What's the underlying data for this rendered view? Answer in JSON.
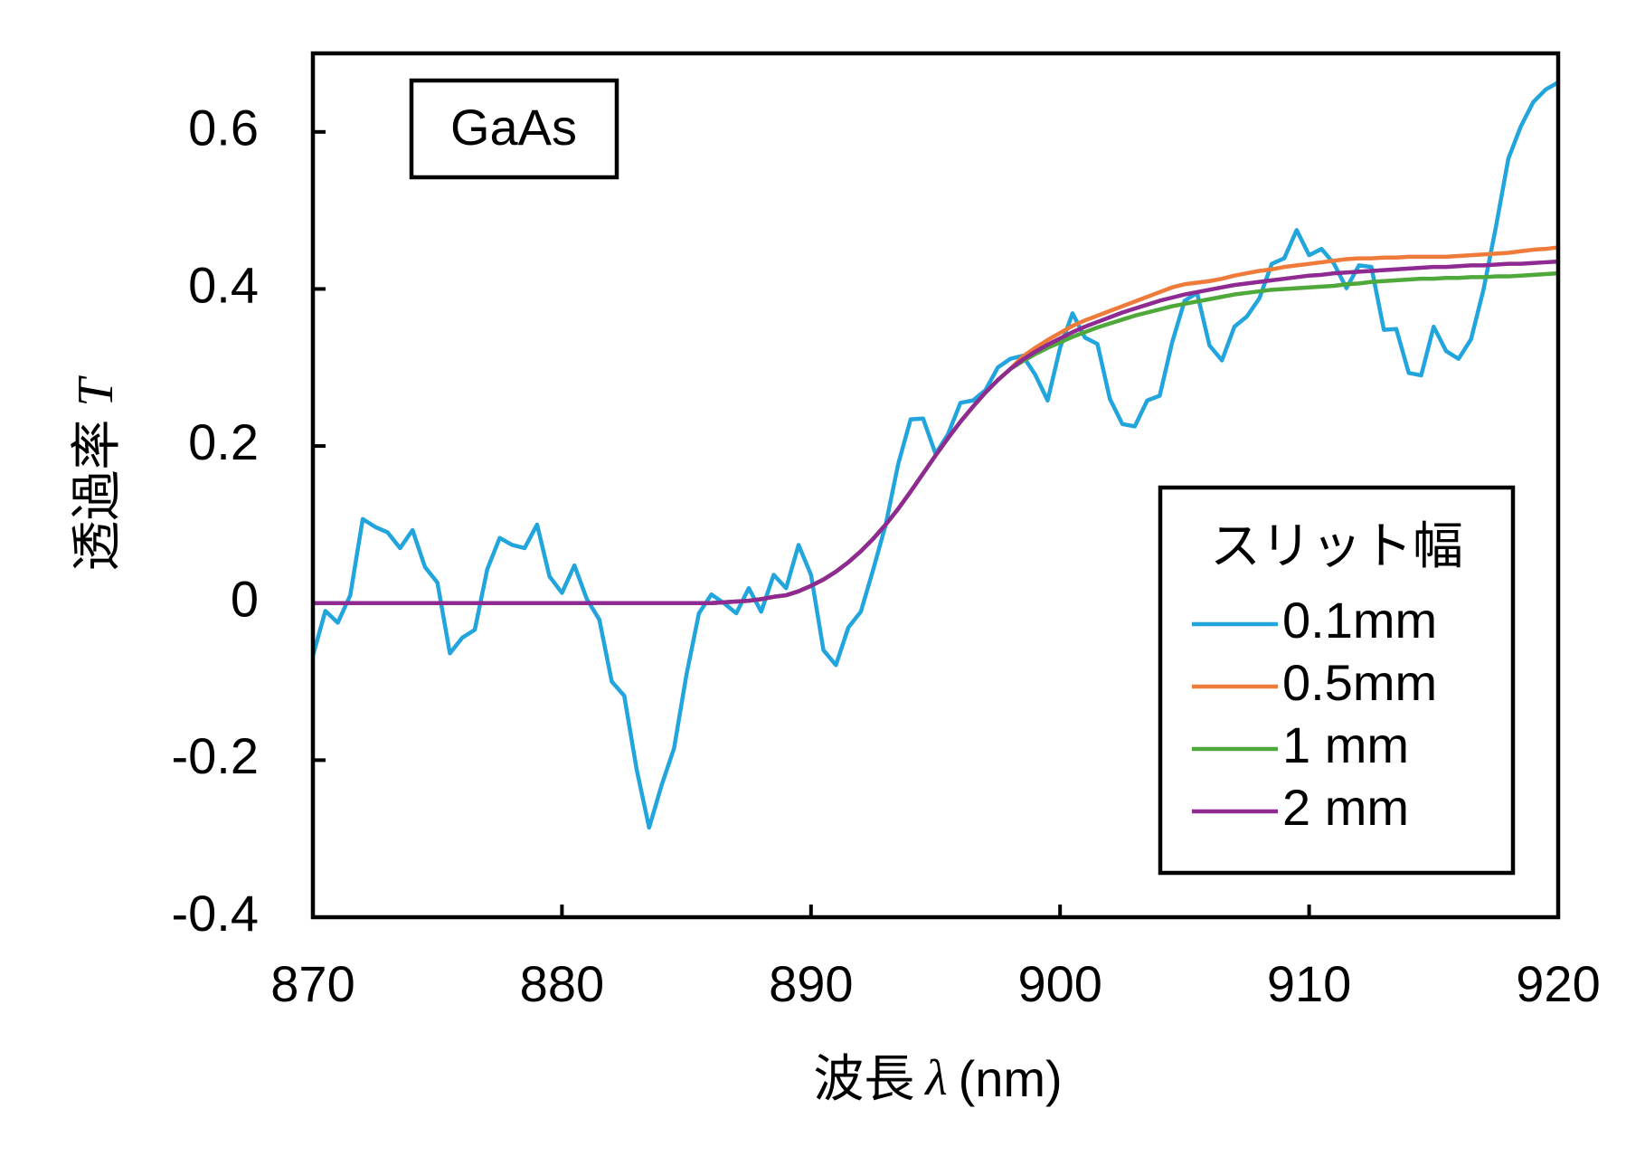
{
  "chart_data": {
    "type": "line",
    "annotation": "GaAs",
    "x_label": "波長",
    "x_label_symbol": "λ",
    "x_label_unit": "(nm)",
    "y_label": "透過率",
    "y_label_symbol": "T",
    "legend_title": "スリット幅",
    "legend": "lower right",
    "xlim": [
      870,
      920
    ],
    "xticks": [
      870,
      880,
      890,
      900,
      910,
      920
    ],
    "ylim": [
      -0.4,
      0.7
    ],
    "yticks": [
      -0.4,
      -0.2,
      0,
      0.2,
      0.4,
      0.6
    ],
    "x": [
      870,
      870.5,
      871,
      871.5,
      872,
      872.5,
      873,
      873.5,
      874,
      874.5,
      875,
      875.5,
      876,
      876.5,
      877,
      877.5,
      878,
      878.5,
      879,
      879.5,
      880,
      880.5,
      881,
      881.5,
      882,
      882.5,
      883,
      883.5,
      884,
      884.5,
      885,
      885.5,
      886,
      886.5,
      887,
      887.5,
      888,
      888.5,
      889,
      889.5,
      890,
      890.5,
      891,
      891.5,
      892,
      892.5,
      893,
      893.5,
      894,
      894.5,
      895,
      895.5,
      896,
      896.5,
      897,
      897.5,
      898,
      898.5,
      899,
      899.5,
      900,
      900.5,
      901,
      901.5,
      902,
      902.5,
      903,
      903.5,
      904,
      904.5,
      905,
      905.5,
      906,
      906.5,
      907,
      907.5,
      908,
      908.5,
      909,
      909.5,
      910,
      910.5,
      911,
      911.5,
      912,
      912.5,
      913,
      913.5,
      914,
      914.5,
      915,
      915.5,
      916,
      916.5,
      917,
      917.5,
      918,
      918.5,
      919,
      919.5,
      920
    ],
    "series": [
      {
        "name": "0.1mm",
        "color": "#22a5dc",
        "values": [
          -0.067,
          -0.01,
          -0.025,
          0.01,
          0.107,
          0.097,
          0.09,
          0.07,
          0.093,
          0.046,
          0.026,
          -0.064,
          -0.044,
          -0.034,
          0.043,
          0.083,
          0.074,
          0.07,
          0.1,
          0.034,
          0.013,
          0.048,
          0.005,
          -0.021,
          -0.1,
          -0.118,
          -0.212,
          -0.286,
          -0.232,
          -0.185,
          -0.091,
          -0.013,
          0.011,
          0,
          -0.013,
          0.019,
          -0.011,
          0.036,
          0.019,
          0.074,
          0.036,
          -0.06,
          -0.079,
          -0.031,
          -0.011,
          0.043,
          0.1,
          0.177,
          0.234,
          0.235,
          0.19,
          0.215,
          0.255,
          0.258,
          0.271,
          0.3,
          0.311,
          0.315,
          0.291,
          0.258,
          0.325,
          0.369,
          0.338,
          0.33,
          0.26,
          0.228,
          0.225,
          0.258,
          0.264,
          0.332,
          0.385,
          0.395,
          0.328,
          0.309,
          0.352,
          0.365,
          0.388,
          0.432,
          0.439,
          0.475,
          0.443,
          0.451,
          0.432,
          0.401,
          0.43,
          0.428,
          0.348,
          0.349,
          0.293,
          0.29,
          0.352,
          0.321,
          0.311,
          0.336,
          0.399,
          0.479,
          0.566,
          0.607,
          0.638,
          0.654,
          0.663
        ]
      },
      {
        "name": "0.5mm",
        "color": "#ef7b3a",
        "values": [
          0,
          0,
          0,
          0,
          0,
          0,
          0,
          0,
          0,
          0,
          0,
          0,
          0,
          0,
          0,
          0,
          0,
          0,
          0,
          0,
          0,
          0,
          0,
          0,
          0,
          0,
          0,
          0,
          0,
          0,
          0,
          0,
          0,
          0.001,
          0.002,
          0.003,
          0.005,
          0.008,
          0.01,
          0.015,
          0.022,
          0.03,
          0.04,
          0.052,
          0.066,
          0.082,
          0.1,
          0.12,
          0.142,
          0.165,
          0.188,
          0.21,
          0.231,
          0.25,
          0.268,
          0.284,
          0.298,
          0.314,
          0.325,
          0.335,
          0.344,
          0.353,
          0.36,
          0.366,
          0.372,
          0.378,
          0.384,
          0.39,
          0.396,
          0.402,
          0.406,
          0.408,
          0.41,
          0.413,
          0.417,
          0.42,
          0.423,
          0.425,
          0.428,
          0.43,
          0.432,
          0.434,
          0.436,
          0.438,
          0.439,
          0.439,
          0.44,
          0.44,
          0.441,
          0.441,
          0.441,
          0.441,
          0.442,
          0.443,
          0.444,
          0.445,
          0.446,
          0.448,
          0.45,
          0.451,
          0.453
        ]
      },
      {
        "name": "1 mm",
        "color": "#4fa83a",
        "values": [
          0,
          0,
          0,
          0,
          0,
          0,
          0,
          0,
          0,
          0,
          0,
          0,
          0,
          0,
          0,
          0,
          0,
          0,
          0,
          0,
          0,
          0,
          0,
          0,
          0,
          0,
          0,
          0,
          0,
          0,
          0,
          0,
          0,
          0.001,
          0.002,
          0.003,
          0.005,
          0.008,
          0.01,
          0.015,
          0.022,
          0.03,
          0.04,
          0.052,
          0.066,
          0.082,
          0.1,
          0.12,
          0.142,
          0.165,
          0.188,
          0.21,
          0.231,
          0.25,
          0.268,
          0.284,
          0.298,
          0.308,
          0.317,
          0.325,
          0.332,
          0.339,
          0.345,
          0.351,
          0.356,
          0.361,
          0.366,
          0.37,
          0.374,
          0.378,
          0.381,
          0.384,
          0.387,
          0.39,
          0.393,
          0.395,
          0.397,
          0.399,
          0.4,
          0.401,
          0.402,
          0.403,
          0.404,
          0.406,
          0.407,
          0.409,
          0.41,
          0.411,
          0.412,
          0.413,
          0.413,
          0.414,
          0.414,
          0.415,
          0.415,
          0.416,
          0.416,
          0.417,
          0.418,
          0.419,
          0.42
        ]
      },
      {
        "name": "2 mm",
        "color": "#8e2a91",
        "values": [
          0,
          0,
          0,
          0,
          0,
          0,
          0,
          0,
          0,
          0,
          0,
          0,
          0,
          0,
          0,
          0,
          0,
          0,
          0,
          0,
          0,
          0,
          0,
          0,
          0,
          0,
          0,
          0,
          0,
          0,
          0,
          0,
          0,
          0.001,
          0.002,
          0.003,
          0.005,
          0.008,
          0.01,
          0.015,
          0.022,
          0.03,
          0.04,
          0.052,
          0.066,
          0.082,
          0.1,
          0.12,
          0.142,
          0.165,
          0.188,
          0.21,
          0.231,
          0.25,
          0.268,
          0.284,
          0.298,
          0.31,
          0.32,
          0.329,
          0.337,
          0.345,
          0.352,
          0.358,
          0.364,
          0.37,
          0.375,
          0.38,
          0.385,
          0.389,
          0.393,
          0.396,
          0.399,
          0.402,
          0.405,
          0.407,
          0.409,
          0.411,
          0.413,
          0.415,
          0.417,
          0.418,
          0.42,
          0.421,
          0.422,
          0.423,
          0.424,
          0.425,
          0.426,
          0.427,
          0.428,
          0.428,
          0.429,
          0.43,
          0.43,
          0.431,
          0.432,
          0.432,
          0.433,
          0.434,
          0.435
        ]
      }
    ]
  }
}
